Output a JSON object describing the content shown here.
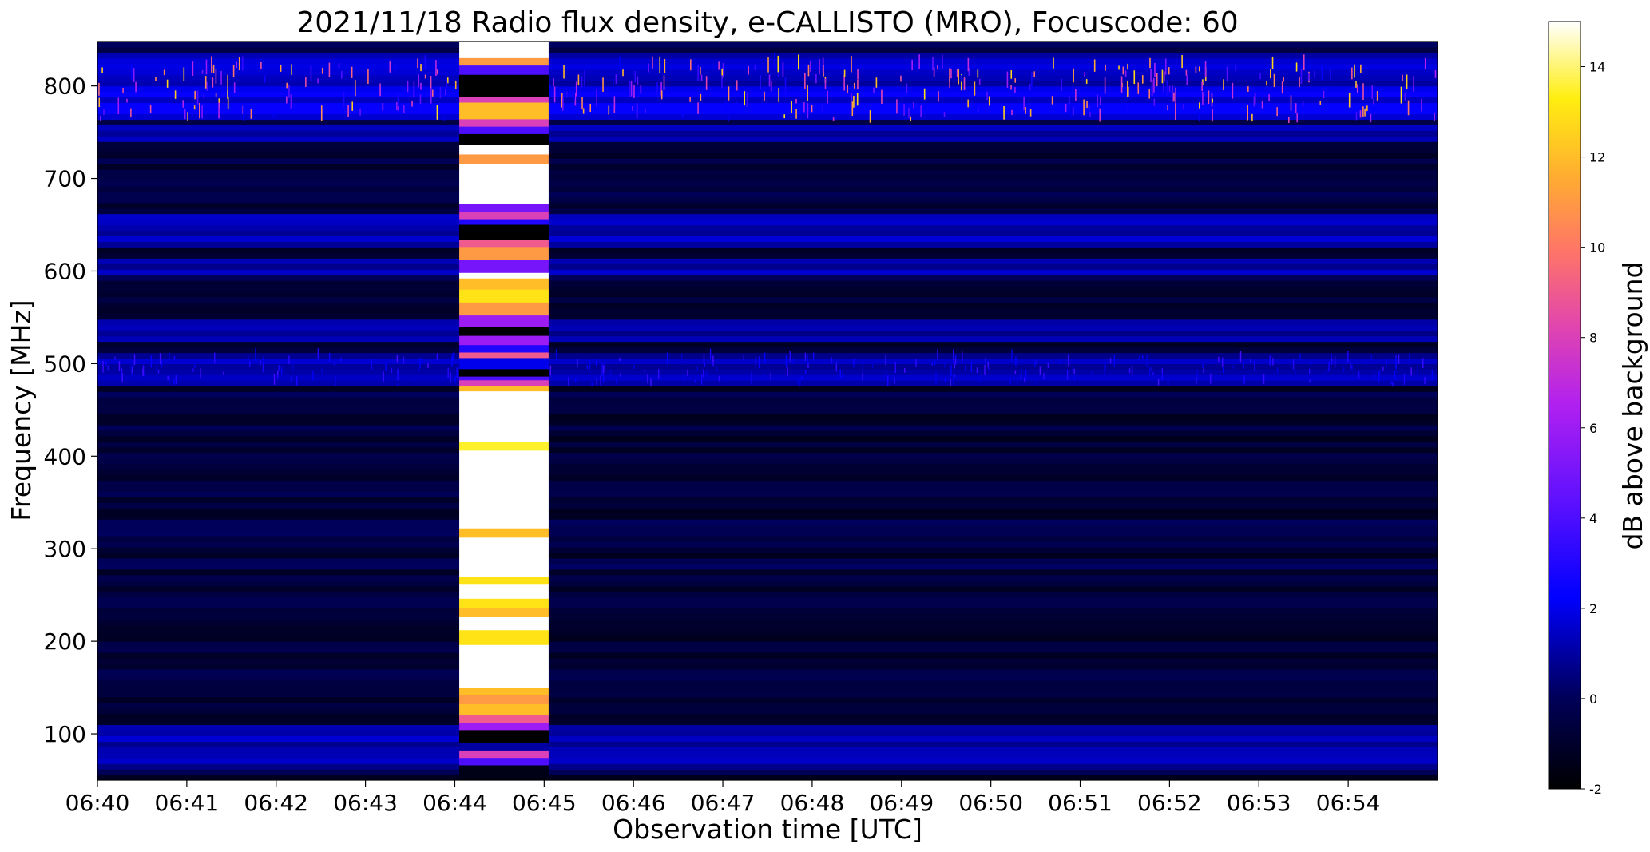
{
  "chart_data": {
    "type": "heatmap",
    "title": "2021/11/18  Radio flux density, e-CALLISTO (MRO), Focuscode: 60",
    "xlabel": "Observation time [UTC]",
    "ylabel": "Frequency [MHz]",
    "x_ticks": [
      "06:40",
      "06:41",
      "06:42",
      "06:43",
      "06:44",
      "06:45",
      "06:46",
      "06:47",
      "06:48",
      "06:49",
      "06:50",
      "06:51",
      "06:52",
      "06:53",
      "06:54"
    ],
    "x_range_minutes": [
      0,
      15
    ],
    "y_ticks": [
      100,
      200,
      300,
      400,
      500,
      600,
      700,
      800
    ],
    "ylim": [
      50,
      848
    ],
    "colormap": "gnuplot2",
    "colorbar": {
      "label": "dB above background",
      "range": [
        -2,
        15
      ],
      "ticks": [
        -2,
        0,
        2,
        4,
        6,
        8,
        10,
        12,
        14
      ]
    },
    "features": {
      "saturated_interval_minutes": [
        4.05,
        5.05
      ],
      "bright_band_mhz": [
        760,
        830
      ],
      "moderate_bands_mhz": [
        [
          475,
          510
        ],
        [
          520,
          545
        ],
        [
          595,
          610
        ],
        [
          625,
          660
        ],
        [
          738,
          752
        ],
        [
          60,
          105
        ]
      ]
    }
  }
}
